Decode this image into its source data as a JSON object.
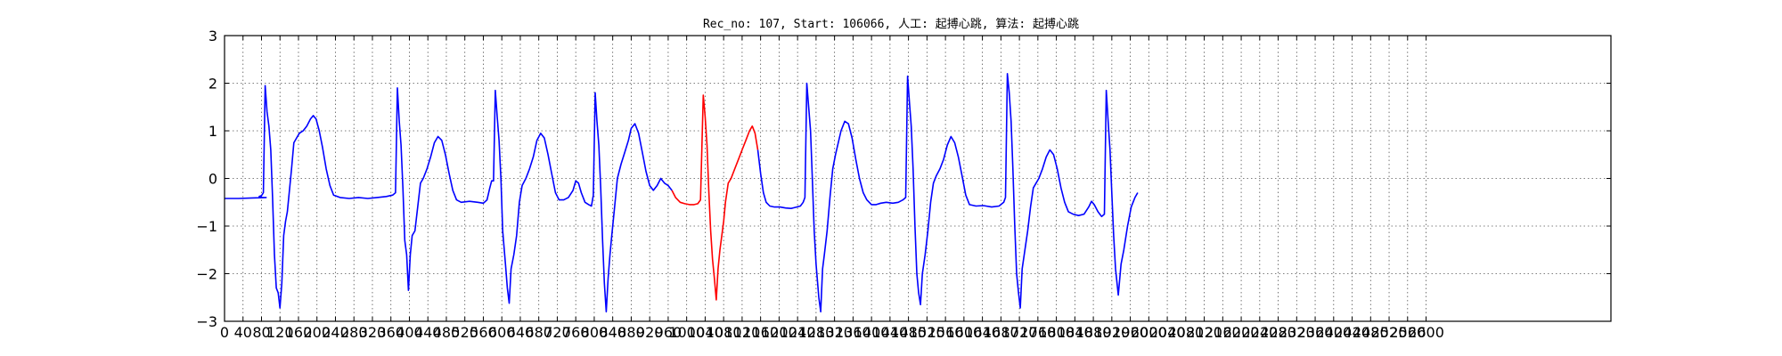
{
  "chart_data": {
    "type": "line",
    "title": "Rec_no: 107, Start: 106066, 人工: 起搏心跳, 算法: 起搏心跳",
    "xlabel": "",
    "ylabel": "",
    "xlim": [
      0,
      3000
    ],
    "ylim": [
      -3,
      3
    ],
    "grid": true,
    "x_tick_step": 40,
    "x_ticks": [
      "0",
      "40",
      "80",
      "120",
      "160",
      "200",
      "240",
      "280",
      "320",
      "360",
      "400",
      "440",
      "480",
      "520",
      "560",
      "600",
      "640",
      "680",
      "720",
      "760",
      "800",
      "840",
      "880",
      "920",
      "960",
      "1000",
      "1040",
      "1080",
      "1120",
      "1160",
      "1200",
      "1240",
      "1280",
      "1320",
      "1360",
      "1400",
      "1440",
      "1480",
      "1520",
      "1560",
      "1600",
      "1640",
      "1680",
      "1720",
      "1760",
      "1800",
      "1840",
      "1880",
      "1920",
      "1960",
      "2000",
      "2040",
      "2080",
      "2120",
      "2160",
      "2200",
      "2240",
      "2280",
      "2320",
      "2360",
      "2400",
      "2440",
      "2480",
      "2520",
      "2560",
      "2600"
    ],
    "y_ticks": [
      "3",
      "2",
      "1",
      "0",
      "−1",
      "−2",
      "−3"
    ],
    "colors": {
      "normal": "#0000ff",
      "highlight": "#ff0000",
      "grid": "#555555"
    },
    "series": [
      {
        "color": "#0000ff",
        "points": [
          [
            0,
            -0.42
          ],
          [
            30,
            -0.42
          ],
          [
            60,
            -0.41
          ],
          [
            90,
            -0.4
          ],
          [
            82,
            -0.4
          ],
          [
            75,
            -0.38
          ],
          [
            75,
            -0.38
          ],
          [
            80,
            -0.36
          ],
          [
            84,
            -0.3
          ],
          [
            88,
            1.95
          ],
          [
            92,
            1.4
          ],
          [
            96,
            1.1
          ],
          [
            100,
            0.6
          ],
          [
            104,
            -0.4
          ],
          [
            108,
            -1.6
          ],
          [
            112,
            -2.3
          ],
          [
            116,
            -2.4
          ],
          [
            120,
            -2.72
          ],
          [
            124,
            -2.2
          ],
          [
            128,
            -1.2
          ],
          [
            132,
            -0.9
          ],
          [
            136,
            -0.7
          ],
          [
            140,
            -0.3
          ],
          [
            145,
            0.2
          ],
          [
            150,
            0.75
          ],
          [
            156,
            0.85
          ],
          [
            162,
            0.95
          ],
          [
            170,
            1.0
          ],
          [
            178,
            1.1
          ],
          [
            186,
            1.25
          ],
          [
            192,
            1.32
          ],
          [
            198,
            1.25
          ],
          [
            205,
            1.0
          ],
          [
            212,
            0.65
          ],
          [
            220,
            0.2
          ],
          [
            228,
            -0.15
          ],
          [
            236,
            -0.35
          ],
          [
            250,
            -0.4
          ],
          [
            270,
            -0.42
          ],
          [
            290,
            -0.4
          ],
          [
            310,
            -0.42
          ],
          [
            330,
            -0.4
          ],
          [
            350,
            -0.38
          ],
          [
            364,
            -0.35
          ],
          [
            370,
            -0.3
          ],
          [
            374,
            1.9
          ],
          [
            378,
            1.2
          ],
          [
            382,
            0.7
          ],
          [
            386,
            -0.2
          ],
          [
            390,
            -1.3
          ],
          [
            394,
            -1.6
          ],
          [
            398,
            -2.35
          ],
          [
            402,
            -1.6
          ],
          [
            406,
            -1.2
          ],
          [
            412,
            -1.1
          ],
          [
            418,
            -0.6
          ],
          [
            424,
            -0.1
          ],
          [
            430,
            0.0
          ],
          [
            438,
            0.2
          ],
          [
            446,
            0.45
          ],
          [
            454,
            0.75
          ],
          [
            462,
            0.88
          ],
          [
            470,
            0.8
          ],
          [
            478,
            0.5
          ],
          [
            486,
            0.1
          ],
          [
            494,
            -0.25
          ],
          [
            502,
            -0.45
          ],
          [
            512,
            -0.5
          ],
          [
            530,
            -0.48
          ],
          [
            548,
            -0.5
          ],
          [
            560,
            -0.52
          ],
          [
            568,
            -0.45
          ],
          [
            574,
            -0.2
          ],
          [
            578,
            -0.05
          ],
          [
            582,
            -0.05
          ],
          [
            586,
            1.85
          ],
          [
            590,
            1.3
          ],
          [
            594,
            0.8
          ],
          [
            598,
            0.0
          ],
          [
            602,
            -1.1
          ],
          [
            608,
            -1.8
          ],
          [
            612,
            -2.3
          ],
          [
            616,
            -2.62
          ],
          [
            620,
            -1.9
          ],
          [
            626,
            -1.6
          ],
          [
            632,
            -1.2
          ],
          [
            638,
            -0.5
          ],
          [
            644,
            -0.15
          ],
          [
            652,
            0.0
          ],
          [
            660,
            0.2
          ],
          [
            668,
            0.45
          ],
          [
            676,
            0.8
          ],
          [
            684,
            0.95
          ],
          [
            692,
            0.85
          ],
          [
            700,
            0.5
          ],
          [
            708,
            0.1
          ],
          [
            716,
            -0.3
          ],
          [
            724,
            -0.45
          ],
          [
            734,
            -0.45
          ],
          [
            744,
            -0.4
          ],
          [
            754,
            -0.25
          ],
          [
            760,
            -0.05
          ],
          [
            766,
            -0.1
          ],
          [
            772,
            -0.3
          ],
          [
            780,
            -0.5
          ],
          [
            788,
            -0.55
          ],
          [
            794,
            -0.58
          ],
          [
            798,
            -0.35
          ],
          [
            802,
            1.8
          ],
          [
            806,
            1.2
          ],
          [
            810,
            0.7
          ],
          [
            814,
            -0.2
          ],
          [
            818,
            -1.3
          ],
          [
            822,
            -2.2
          ],
          [
            826,
            -2.8
          ],
          [
            830,
            -2.1
          ],
          [
            834,
            -1.6
          ],
          [
            838,
            -1.2
          ],
          [
            844,
            -0.6
          ],
          [
            850,
            0.0
          ],
          [
            858,
            0.3
          ],
          [
            866,
            0.55
          ],
          [
            874,
            0.8
          ],
          [
            880,
            1.05
          ],
          [
            888,
            1.15
          ],
          [
            896,
            0.95
          ],
          [
            904,
            0.55
          ],
          [
            912,
            0.15
          ],
          [
            920,
            -0.15
          ],
          [
            928,
            -0.25
          ],
          [
            936,
            -0.15
          ],
          [
            944,
            0.0
          ],
          [
            952,
            -0.1
          ],
          [
            960,
            -0.15
          ],
          [
            968,
            -0.25
          ]
        ]
      },
      {
        "color": "#ff0000",
        "points": [
          [
            968,
            -0.25
          ],
          [
            976,
            -0.4
          ],
          [
            986,
            -0.5
          ],
          [
            996,
            -0.53
          ],
          [
            1006,
            -0.55
          ],
          [
            1016,
            -0.55
          ],
          [
            1024,
            -0.53
          ],
          [
            1030,
            -0.45
          ],
          [
            1036,
            1.75
          ],
          [
            1040,
            1.3
          ],
          [
            1044,
            0.7
          ],
          [
            1048,
            -0.3
          ],
          [
            1052,
            -1.1
          ],
          [
            1056,
            -1.7
          ],
          [
            1060,
            -2.1
          ],
          [
            1064,
            -2.55
          ],
          [
            1068,
            -1.9
          ],
          [
            1072,
            -1.5
          ],
          [
            1076,
            -1.2
          ],
          [
            1080,
            -0.9
          ],
          [
            1084,
            -0.5
          ],
          [
            1090,
            -0.1
          ],
          [
            1096,
            0.0
          ],
          [
            1104,
            0.2
          ],
          [
            1112,
            0.4
          ],
          [
            1120,
            0.6
          ],
          [
            1128,
            0.8
          ],
          [
            1136,
            1.0
          ],
          [
            1142,
            1.1
          ],
          [
            1148,
            0.95
          ],
          [
            1154,
            0.6
          ]
        ]
      },
      {
        "color": "#0000ff",
        "points": [
          [
            1154,
            0.6
          ],
          [
            1160,
            0.1
          ],
          [
            1166,
            -0.3
          ],
          [
            1172,
            -0.5
          ],
          [
            1180,
            -0.58
          ],
          [
            1190,
            -0.6
          ],
          [
            1202,
            -0.6
          ],
          [
            1214,
            -0.62
          ],
          [
            1226,
            -0.63
          ],
          [
            1238,
            -0.6
          ],
          [
            1246,
            -0.58
          ],
          [
            1252,
            -0.5
          ],
          [
            1256,
            -0.4
          ],
          [
            1260,
            2.0
          ],
          [
            1264,
            1.5
          ],
          [
            1268,
            1.0
          ],
          [
            1272,
            0.0
          ],
          [
            1276,
            -1.1
          ],
          [
            1280,
            -1.8
          ],
          [
            1286,
            -2.5
          ],
          [
            1290,
            -2.8
          ],
          [
            1294,
            -1.9
          ],
          [
            1298,
            -1.6
          ],
          [
            1304,
            -1.1
          ],
          [
            1310,
            -0.4
          ],
          [
            1316,
            0.2
          ],
          [
            1322,
            0.5
          ],
          [
            1328,
            0.75
          ],
          [
            1334,
            1.0
          ],
          [
            1342,
            1.2
          ],
          [
            1350,
            1.15
          ],
          [
            1358,
            0.85
          ],
          [
            1366,
            0.4
          ],
          [
            1374,
            0.0
          ],
          [
            1382,
            -0.3
          ],
          [
            1390,
            -0.45
          ],
          [
            1400,
            -0.55
          ],
          [
            1410,
            -0.55
          ],
          [
            1420,
            -0.52
          ],
          [
            1432,
            -0.5
          ],
          [
            1446,
            -0.52
          ],
          [
            1458,
            -0.5
          ],
          [
            1468,
            -0.45
          ],
          [
            1474,
            -0.4
          ],
          [
            1478,
            2.15
          ],
          [
            1482,
            1.6
          ],
          [
            1486,
            1.1
          ],
          [
            1490,
            0.2
          ],
          [
            1494,
            -1.0
          ],
          [
            1498,
            -2.0
          ],
          [
            1502,
            -2.4
          ],
          [
            1506,
            -2.65
          ],
          [
            1510,
            -2.0
          ],
          [
            1516,
            -1.6
          ],
          [
            1522,
            -1.1
          ],
          [
            1528,
            -0.5
          ],
          [
            1534,
            -0.1
          ],
          [
            1540,
            0.05
          ],
          [
            1548,
            0.2
          ],
          [
            1556,
            0.4
          ],
          [
            1564,
            0.7
          ],
          [
            1572,
            0.88
          ],
          [
            1580,
            0.75
          ],
          [
            1588,
            0.45
          ],
          [
            1596,
            0.05
          ],
          [
            1604,
            -0.35
          ],
          [
            1612,
            -0.55
          ],
          [
            1626,
            -0.58
          ],
          [
            1642,
            -0.57
          ],
          [
            1660,
            -0.6
          ],
          [
            1676,
            -0.58
          ],
          [
            1686,
            -0.5
          ],
          [
            1690,
            -0.4
          ],
          [
            1694,
            2.2
          ],
          [
            1698,
            1.8
          ],
          [
            1702,
            1.2
          ],
          [
            1706,
            0.2
          ],
          [
            1710,
            -1.0
          ],
          [
            1714,
            -2.0
          ],
          [
            1718,
            -2.4
          ],
          [
            1722,
            -2.72
          ],
          [
            1726,
            -1.9
          ],
          [
            1732,
            -1.5
          ],
          [
            1738,
            -1.1
          ],
          [
            1744,
            -0.6
          ],
          [
            1750,
            -0.2
          ],
          [
            1756,
            -0.1
          ],
          [
            1762,
            0.0
          ],
          [
            1770,
            0.2
          ],
          [
            1778,
            0.45
          ],
          [
            1786,
            0.6
          ],
          [
            1794,
            0.5
          ],
          [
            1802,
            0.2
          ],
          [
            1810,
            -0.2
          ],
          [
            1818,
            -0.5
          ],
          [
            1826,
            -0.7
          ],
          [
            1836,
            -0.75
          ],
          [
            1848,
            -0.78
          ],
          [
            1860,
            -0.75
          ],
          [
            1870,
            -0.6
          ],
          [
            1876,
            -0.48
          ],
          [
            1882,
            -0.55
          ],
          [
            1890,
            -0.7
          ],
          [
            1898,
            -0.8
          ],
          [
            1904,
            -0.75
          ],
          [
            1908,
            1.85
          ],
          [
            1912,
            1.2
          ],
          [
            1916,
            0.6
          ],
          [
            1920,
            -0.3
          ],
          [
            1924,
            -1.2
          ],
          [
            1928,
            -1.9
          ],
          [
            1934,
            -2.45
          ],
          [
            1940,
            -1.8
          ],
          [
            1946,
            -1.5
          ],
          [
            1954,
            -1.0
          ],
          [
            1962,
            -0.6
          ],
          [
            1970,
            -0.4
          ],
          [
            1976,
            -0.3
          ]
        ]
      }
    ]
  }
}
